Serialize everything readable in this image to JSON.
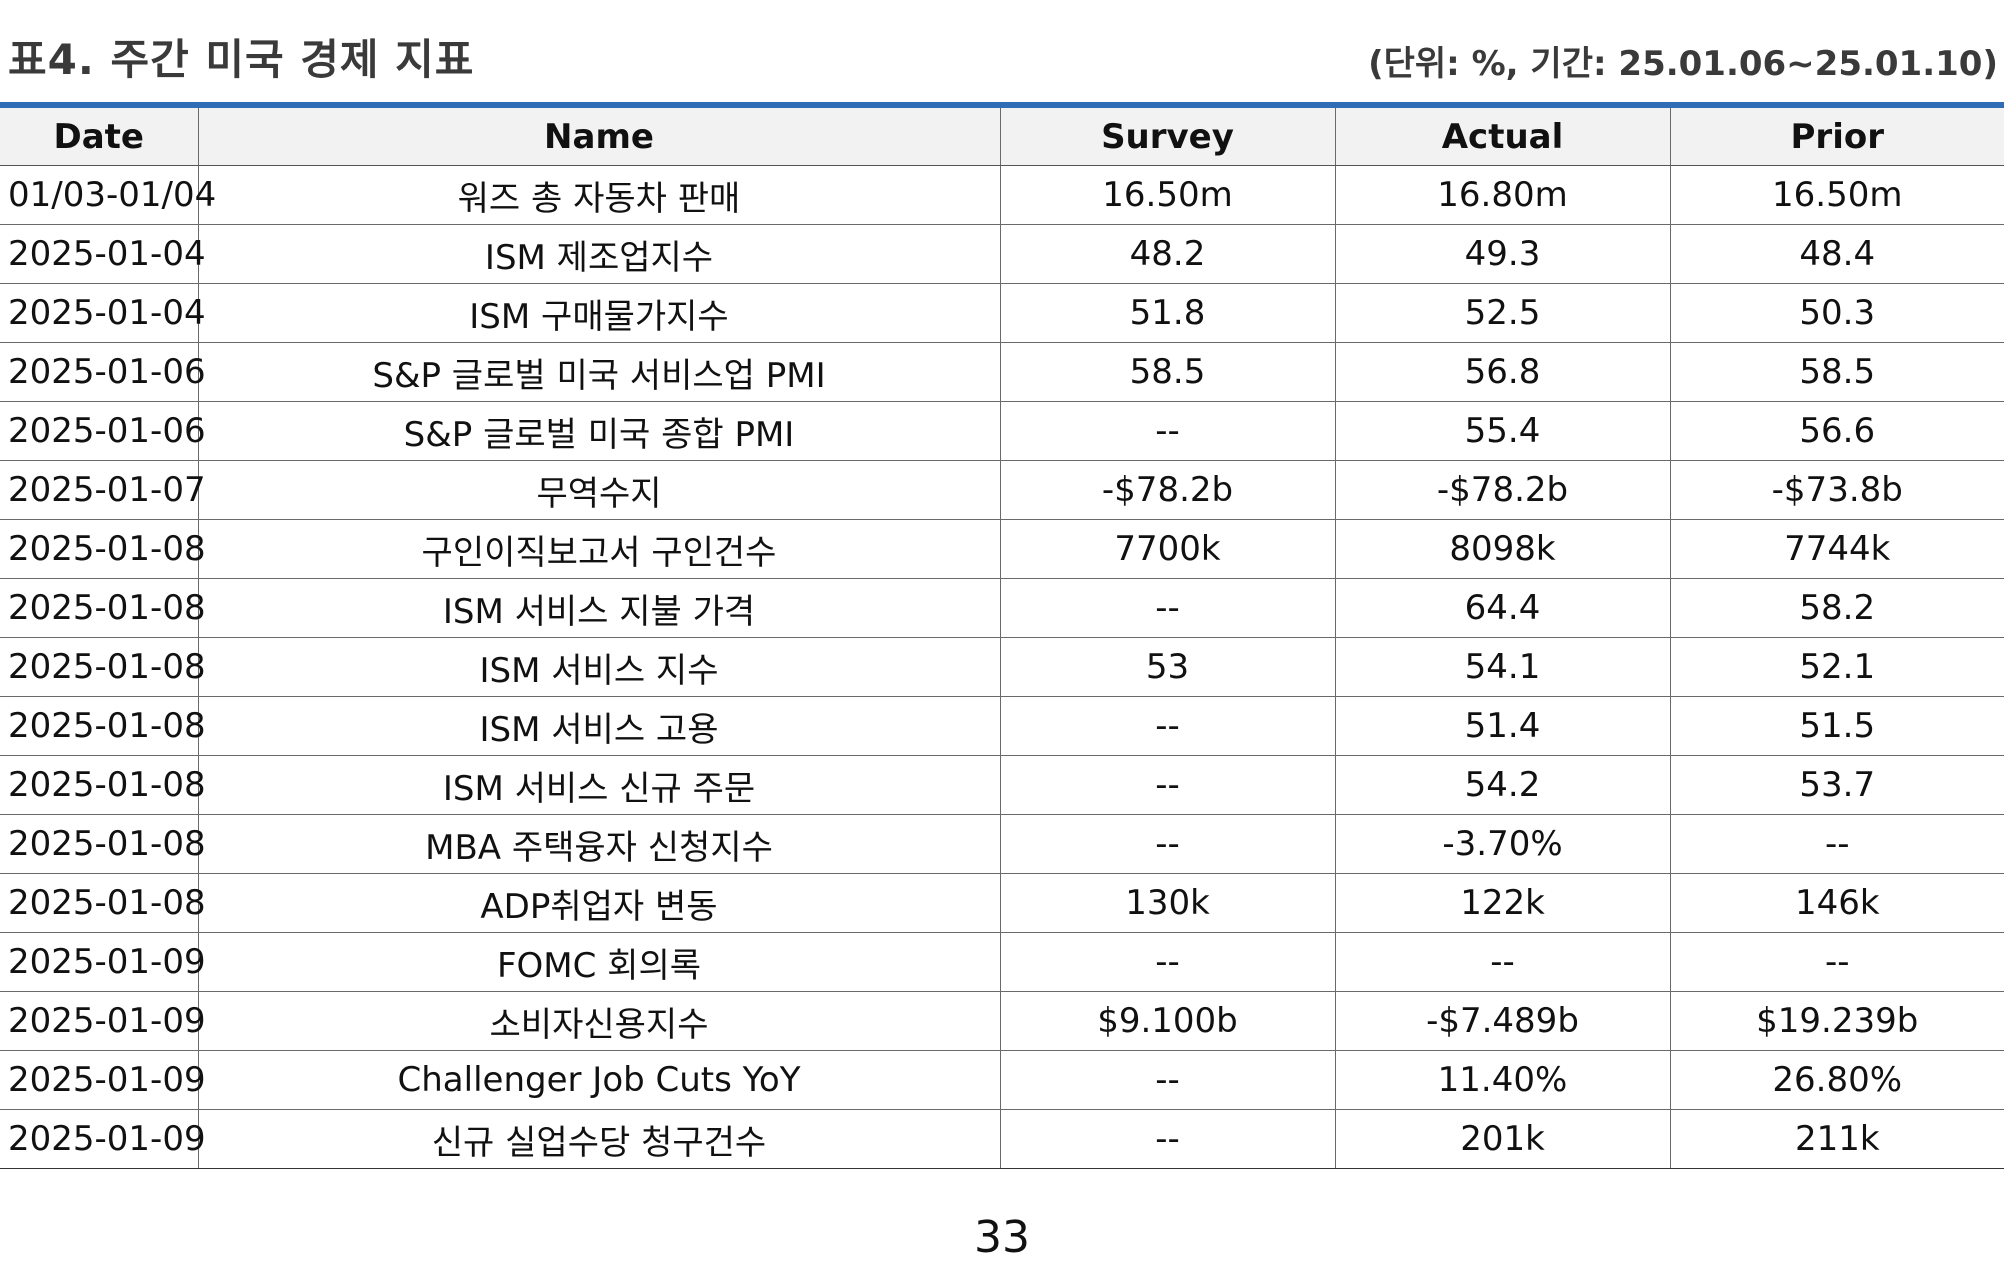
{
  "header": {
    "title": "표4. 주간 미국 경제 지표",
    "unit_note": "(단위: %, 기간: 25.01.06~25.01.10)"
  },
  "table": {
    "columns": [
      "Date",
      "Name",
      "Survey",
      "Actual",
      "Prior"
    ],
    "rows": [
      [
        "01/03-01/04",
        "워즈 총 자동차 판매",
        "16.50m",
        "16.80m",
        "16.50m"
      ],
      [
        "2025-01-04",
        "ISM 제조업지수",
        "48.2",
        "49.3",
        "48.4"
      ],
      [
        "2025-01-04",
        "ISM 구매물가지수",
        "51.8",
        "52.5",
        "50.3"
      ],
      [
        "2025-01-06",
        "S&P 글로벌 미국 서비스업 PMI",
        "58.5",
        "56.8",
        "58.5"
      ],
      [
        "2025-01-06",
        "S&P 글로벌 미국 종합 PMI",
        "--",
        "55.4",
        "56.6"
      ],
      [
        "2025-01-07",
        "무역수지",
        "-$78.2b",
        "-$78.2b",
        "-$73.8b"
      ],
      [
        "2025-01-08",
        "구인이직보고서 구인건수",
        "7700k",
        "8098k",
        "7744k"
      ],
      [
        "2025-01-08",
        "ISM 서비스 지불 가격",
        "--",
        "64.4",
        "58.2"
      ],
      [
        "2025-01-08",
        "ISM 서비스 지수",
        "53",
        "54.1",
        "52.1"
      ],
      [
        "2025-01-08",
        "ISM 서비스 고용",
        "--",
        "51.4",
        "51.5"
      ],
      [
        "2025-01-08",
        "ISM 서비스 신규 주문",
        "--",
        "54.2",
        "53.7"
      ],
      [
        "2025-01-08",
        "MBA 주택융자 신청지수",
        "--",
        "-3.70%",
        "--"
      ],
      [
        "2025-01-08",
        "ADP취업자 변동",
        "130k",
        "122k",
        "146k"
      ],
      [
        "2025-01-09",
        "FOMC 회의록",
        "--",
        "--",
        "--"
      ],
      [
        "2025-01-09",
        "소비자신용지수",
        "$9.100b",
        "-$7.489b",
        "$19.239b"
      ],
      [
        "2025-01-09",
        "Challenger Job Cuts YoY",
        "--",
        "11.40%",
        "26.80%"
      ],
      [
        "2025-01-09",
        "신규 실업수당 청구건수",
        "--",
        "201k",
        "211k"
      ]
    ]
  },
  "footer": {
    "page_number": "33"
  },
  "colors": {
    "rule_blue": "#2f6db5",
    "header_bg": "#f2f2f2",
    "title_gray": "#3a3a3a"
  }
}
